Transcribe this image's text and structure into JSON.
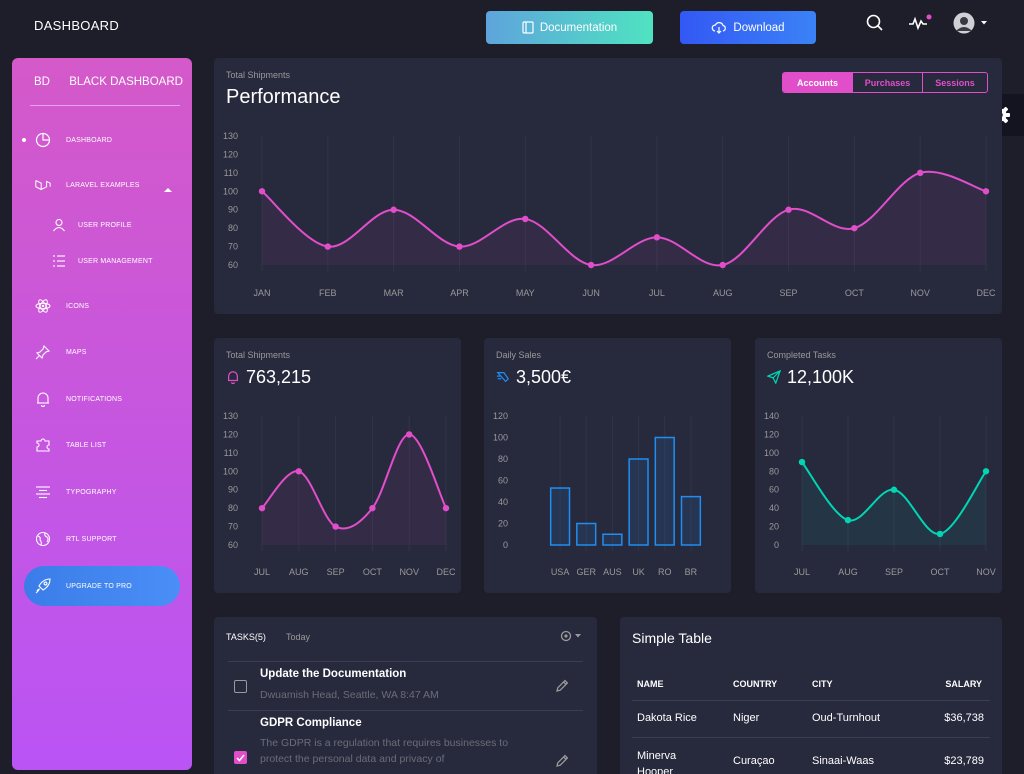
{
  "topbar": {
    "brand": "DASHBOARD",
    "documentation_label": "Documentation",
    "download_label": "Download"
  },
  "sidebar": {
    "logo_short": "BD",
    "logo_full": "BLACK DASHBOARD",
    "items": [
      {
        "label": "DASHBOARD",
        "icon": "chart-pie-icon"
      },
      {
        "label": "LARAVEL EXAMPLES",
        "icon": "laravel-icon"
      },
      {
        "label": "USER PROFILE",
        "icon": "user-icon"
      },
      {
        "label": "USER MANAGEMENT",
        "icon": "list-icon"
      },
      {
        "label": "ICONS",
        "icon": "atom-icon"
      },
      {
        "label": "MAPS",
        "icon": "pin-icon"
      },
      {
        "label": "NOTIFICATIONS",
        "icon": "bell-icon"
      },
      {
        "label": "TABLE LIST",
        "icon": "puzzle-icon"
      },
      {
        "label": "TYPOGRAPHY",
        "icon": "align-center-icon"
      },
      {
        "label": "RTL SUPPORT",
        "icon": "world-icon"
      },
      {
        "label": "UPGRADE TO PRO",
        "icon": "rocket-icon"
      }
    ]
  },
  "performance": {
    "category": "Total Shipments",
    "title": "Performance",
    "tabs": [
      "Accounts",
      "Purchases",
      "Sessions"
    ],
    "active_tab": "Accounts"
  },
  "shipments": {
    "category": "Total Shipments",
    "value": "763,215"
  },
  "daily_sales": {
    "category": "Daily Sales",
    "value": "3,500€"
  },
  "completed_tasks": {
    "category": "Completed Tasks",
    "value": "12,100K"
  },
  "chart_data": [
    {
      "type": "line",
      "categories": [
        "JAN",
        "FEB",
        "MAR",
        "APR",
        "MAY",
        "JUN",
        "JUL",
        "AUG",
        "SEP",
        "OCT",
        "NOV",
        "DEC"
      ],
      "values": [
        100,
        70,
        90,
        70,
        85,
        60,
        75,
        60,
        90,
        80,
        110,
        100
      ],
      "ylim": [
        60,
        130
      ],
      "yticks": [
        60,
        70,
        80,
        90,
        100,
        110,
        120,
        130
      ],
      "color": "#e14eca"
    },
    {
      "type": "line",
      "categories": [
        "JUL",
        "AUG",
        "SEP",
        "OCT",
        "NOV",
        "DEC"
      ],
      "values": [
        80,
        100,
        70,
        80,
        120,
        80
      ],
      "ylim": [
        60,
        130
      ],
      "yticks": [
        60,
        70,
        80,
        90,
        100,
        110,
        120,
        130
      ],
      "color": "#e14eca"
    },
    {
      "type": "bar",
      "categories": [
        "USA",
        "GER",
        "AUS",
        "UK",
        "RO",
        "BR"
      ],
      "values": [
        53,
        20,
        10,
        80,
        100,
        45
      ],
      "ylim": [
        0,
        120
      ],
      "yticks": [
        0,
        20,
        40,
        60,
        80,
        100,
        120
      ],
      "color": "#1f8ef1"
    },
    {
      "type": "line",
      "categories": [
        "JUL",
        "AUG",
        "SEP",
        "OCT",
        "NOV"
      ],
      "values": [
        90,
        27,
        60,
        12,
        80
      ],
      "ylim": [
        0,
        140
      ],
      "yticks": [
        0,
        20,
        40,
        60,
        80,
        100,
        120,
        140
      ],
      "color": "#00d6b4"
    }
  ],
  "tasks": {
    "title": "TASKS(5)",
    "subtitle": "Today",
    "items": [
      {
        "title": "Update the Documentation",
        "desc": "Dwuamish Head, Seattle, WA 8:47 AM",
        "checked": false
      },
      {
        "title": "GDPR Compliance",
        "desc": "The GDPR is a regulation that requires businesses to protect the personal data and privacy of",
        "checked": true
      }
    ]
  },
  "simple_table": {
    "title": "Simple Table",
    "headers": [
      "NAME",
      "COUNTRY",
      "CITY",
      "SALARY"
    ],
    "rows": [
      [
        "Dakota Rice",
        "Niger",
        "Oud-Turnhout",
        "$36,738"
      ],
      [
        "Minerva Hooper",
        "Curaçao",
        "Sinaai-Waas",
        "$23,789"
      ]
    ]
  }
}
